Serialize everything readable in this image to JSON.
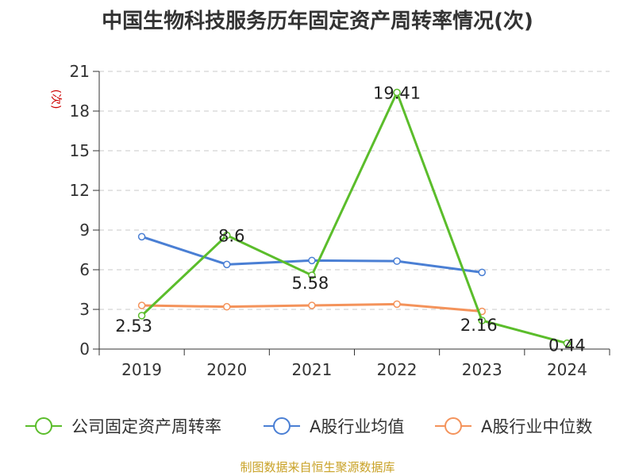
{
  "title": "中国生物科技服务历年固定资产周转率情况(次)",
  "footer": "制图数据来自恒生聚源数据库",
  "colors": {
    "company": "#5bbd2b",
    "industry_avg": "#4a7fd4",
    "industry_median": "#f4935b",
    "axis_unit": "#cc0000"
  },
  "chart_data": {
    "type": "line",
    "title": "中国生物科技服务历年固定资产周转率情况(次)",
    "xlabel": "",
    "ylabel": "(次)",
    "ylim": [
      0,
      21
    ],
    "yticks": [
      0,
      3,
      6,
      9,
      12,
      15,
      18,
      21
    ],
    "grid": true,
    "legend_position": "bottom",
    "categories": [
      "2019",
      "2020",
      "2021",
      "2022",
      "2023",
      "2024"
    ],
    "series": [
      {
        "name": "公司固定资产周转率",
        "color": "#5bbd2b",
        "values": [
          2.53,
          8.6,
          5.58,
          19.41,
          2.16,
          0.44
        ],
        "labels": [
          "2.53",
          "8.6",
          "5.58",
          "19.41",
          "2.16",
          "0.44"
        ]
      },
      {
        "name": "A股行业均值",
        "color": "#4a7fd4",
        "values": [
          8.5,
          6.4,
          6.7,
          6.65,
          5.8,
          null
        ]
      },
      {
        "name": "A股行业中位数",
        "color": "#f4935b",
        "values": [
          3.3,
          3.2,
          3.3,
          3.4,
          2.85,
          null
        ]
      }
    ]
  }
}
